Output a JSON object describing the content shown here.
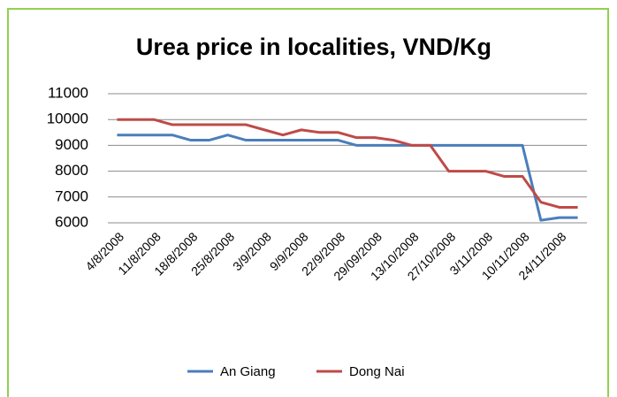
{
  "chart_data": {
    "type": "line",
    "title": "Urea price in localities, VND/Kg",
    "categories": [
      "4/8/2008",
      null,
      "11/8/2008",
      null,
      "18/8/2008",
      null,
      "25/8/2008",
      null,
      "3/9/2008",
      null,
      "9/9/2008",
      null,
      "22/9/2008",
      null,
      "29/09/2008",
      null,
      "13/10/2008",
      null,
      "27/10/2008",
      null,
      "3/11/2008",
      null,
      "10/11/2008",
      null,
      "24/11/2008",
      null
    ],
    "series": [
      {
        "name": "An Giang",
        "color": "#4a7ebb",
        "values": [
          9400,
          9400,
          9400,
          9400,
          9200,
          9200,
          9400,
          9200,
          9200,
          9200,
          9200,
          9200,
          9200,
          9000,
          9000,
          9000,
          9000,
          9000,
          9000,
          9000,
          9000,
          9000,
          9000,
          6100,
          6200,
          6200
        ]
      },
      {
        "name": "Dong Nai",
        "color": "#be4b48",
        "values": [
          10000,
          10000,
          10000,
          9800,
          9800,
          9800,
          9800,
          9800,
          9600,
          9400,
          9600,
          9500,
          9500,
          9300,
          9300,
          9200,
          9000,
          9000,
          8000,
          8000,
          8000,
          7800,
          7800,
          6800,
          6600,
          6600
        ]
      }
    ],
    "ylim": [
      6000,
      11000
    ],
    "yticks": [
      6000,
      7000,
      8000,
      9000,
      10000,
      11000
    ],
    "grid": true,
    "legend": "bottom"
  }
}
